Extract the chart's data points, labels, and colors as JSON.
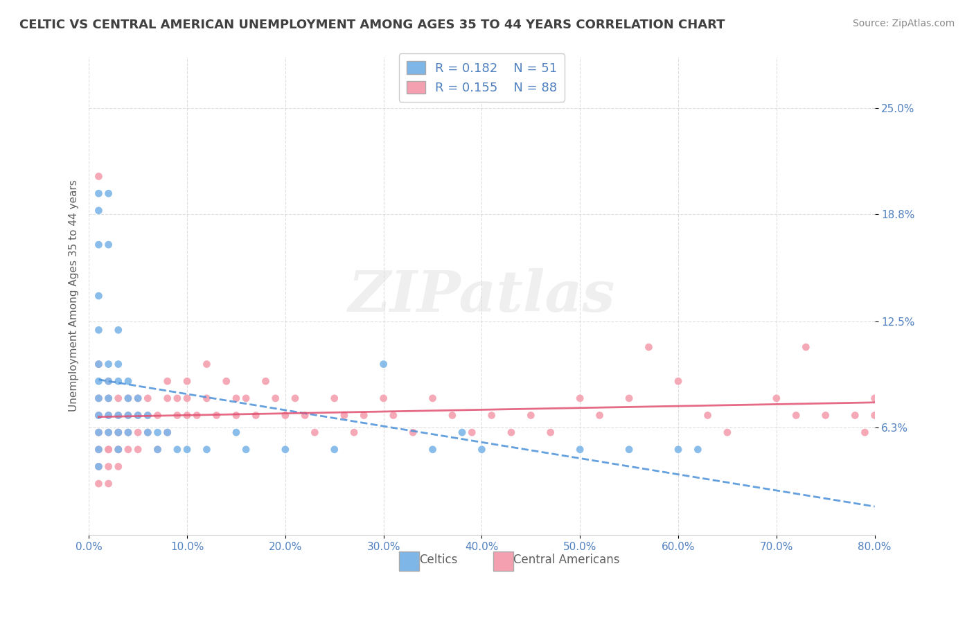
{
  "title": "CELTIC VS CENTRAL AMERICAN UNEMPLOYMENT AMONG AGES 35 TO 44 YEARS CORRELATION CHART",
  "source": "Source: ZipAtlas.com",
  "xlabel": "",
  "ylabel": "Unemployment Among Ages 35 to 44 years",
  "xlim": [
    0.0,
    0.8
  ],
  "ylim": [
    0.0,
    0.28
  ],
  "xtick_labels": [
    "0.0%",
    "10.0%",
    "20.0%",
    "30.0%",
    "40.0%",
    "50.0%",
    "60.0%",
    "70.0%",
    "80.0%"
  ],
  "xtick_vals": [
    0.0,
    0.1,
    0.2,
    0.3,
    0.4,
    0.5,
    0.6,
    0.7,
    0.8
  ],
  "ytick_vals": [
    0.063,
    0.125,
    0.188,
    0.25
  ],
  "ytick_labels": [
    "6.3%",
    "12.5%",
    "18.8%",
    "25.0%"
  ],
  "celtics_color": "#7EB6E8",
  "central_color": "#F4A0B0",
  "celtics_line_color": "#4A90D9",
  "central_line_color": "#E05070",
  "R_celtics": "0.182",
  "N_celtics": "51",
  "R_central": "0.155",
  "N_central": "88",
  "legend_label_celtics": "Celtics",
  "legend_label_central": "Central Americans",
  "background_color": "#ffffff",
  "grid_color": "#d0d0d0",
  "title_color": "#404040",
  "axis_label_color": "#5080C0",
  "watermark": "ZIPatlas",
  "celtics_x": [
    0.01,
    0.01,
    0.01,
    0.01,
    0.01,
    0.01,
    0.01,
    0.01,
    0.01,
    0.01,
    0.01,
    0.01,
    0.02,
    0.02,
    0.02,
    0.02,
    0.02,
    0.02,
    0.02,
    0.03,
    0.03,
    0.03,
    0.03,
    0.03,
    0.03,
    0.04,
    0.04,
    0.04,
    0.04,
    0.05,
    0.05,
    0.06,
    0.06,
    0.07,
    0.07,
    0.08,
    0.09,
    0.1,
    0.12,
    0.15,
    0.16,
    0.2,
    0.25,
    0.3,
    0.35,
    0.38,
    0.4,
    0.5,
    0.55,
    0.6,
    0.62
  ],
  "celtics_y": [
    0.2,
    0.19,
    0.17,
    0.14,
    0.12,
    0.1,
    0.09,
    0.08,
    0.07,
    0.06,
    0.05,
    0.04,
    0.2,
    0.17,
    0.1,
    0.09,
    0.08,
    0.07,
    0.06,
    0.12,
    0.1,
    0.09,
    0.07,
    0.06,
    0.05,
    0.09,
    0.08,
    0.07,
    0.06,
    0.08,
    0.07,
    0.07,
    0.06,
    0.06,
    0.05,
    0.06,
    0.05,
    0.05,
    0.05,
    0.06,
    0.05,
    0.05,
    0.05,
    0.1,
    0.05,
    0.06,
    0.05,
    0.05,
    0.05,
    0.05,
    0.05
  ],
  "central_x": [
    0.01,
    0.01,
    0.01,
    0.01,
    0.01,
    0.01,
    0.01,
    0.01,
    0.02,
    0.02,
    0.02,
    0.02,
    0.02,
    0.02,
    0.02,
    0.02,
    0.03,
    0.03,
    0.03,
    0.03,
    0.03,
    0.03,
    0.03,
    0.04,
    0.04,
    0.04,
    0.04,
    0.05,
    0.05,
    0.05,
    0.05,
    0.06,
    0.06,
    0.06,
    0.07,
    0.07,
    0.08,
    0.08,
    0.08,
    0.09,
    0.09,
    0.1,
    0.1,
    0.1,
    0.11,
    0.12,
    0.12,
    0.13,
    0.14,
    0.15,
    0.15,
    0.16,
    0.17,
    0.18,
    0.19,
    0.2,
    0.21,
    0.22,
    0.23,
    0.25,
    0.26,
    0.27,
    0.28,
    0.3,
    0.31,
    0.33,
    0.35,
    0.37,
    0.39,
    0.41,
    0.43,
    0.45,
    0.47,
    0.5,
    0.52,
    0.55,
    0.57,
    0.6,
    0.63,
    0.65,
    0.7,
    0.72,
    0.73,
    0.75,
    0.78,
    0.79,
    0.8,
    0.8
  ],
  "central_y": [
    0.21,
    0.1,
    0.08,
    0.07,
    0.06,
    0.05,
    0.04,
    0.03,
    0.09,
    0.08,
    0.07,
    0.06,
    0.05,
    0.05,
    0.04,
    0.03,
    0.08,
    0.07,
    0.06,
    0.06,
    0.05,
    0.05,
    0.04,
    0.08,
    0.07,
    0.06,
    0.05,
    0.08,
    0.07,
    0.06,
    0.05,
    0.08,
    0.07,
    0.06,
    0.07,
    0.05,
    0.09,
    0.08,
    0.06,
    0.08,
    0.07,
    0.09,
    0.08,
    0.07,
    0.07,
    0.1,
    0.08,
    0.07,
    0.09,
    0.08,
    0.07,
    0.08,
    0.07,
    0.09,
    0.08,
    0.07,
    0.08,
    0.07,
    0.06,
    0.08,
    0.07,
    0.06,
    0.07,
    0.08,
    0.07,
    0.06,
    0.08,
    0.07,
    0.06,
    0.07,
    0.06,
    0.07,
    0.06,
    0.08,
    0.07,
    0.08,
    0.11,
    0.09,
    0.07,
    0.06,
    0.08,
    0.07,
    0.11,
    0.07,
    0.07,
    0.06,
    0.08,
    0.07
  ]
}
